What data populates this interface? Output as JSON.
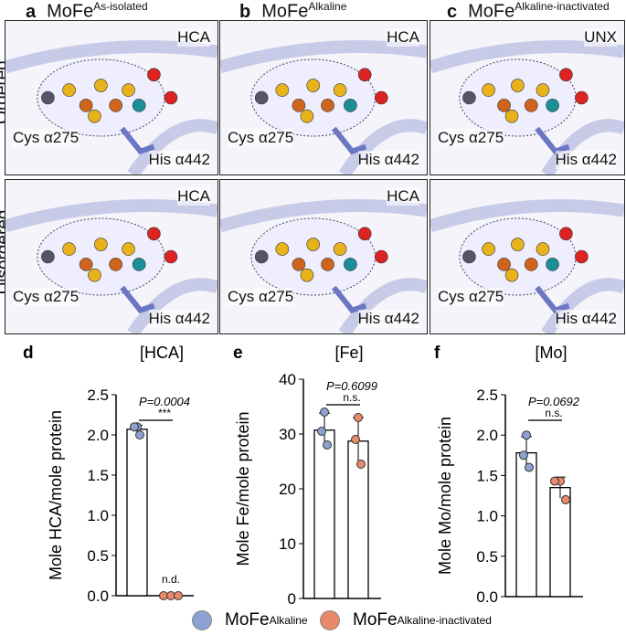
{
  "columns": [
    {
      "letter": "a",
      "title": "MoFe",
      "sup": "As-isolated",
      "labels": {
        "ordered": [
          "HCA",
          "Cys α275",
          "His α442"
        ],
        "disordered": [
          "HCA",
          "Cys α275",
          "His α442"
        ]
      }
    },
    {
      "letter": "b",
      "title": "MoFe",
      "sup": "Alkaline",
      "labels": {
        "ordered": [
          "HCA",
          "Cys α275",
          "His α442"
        ],
        "disordered": [
          "HCA",
          "Cys α275",
          "His α442"
        ]
      }
    },
    {
      "letter": "c",
      "title": "MoFe",
      "sup": "Alkaline-inactivated",
      "labels": {
        "ordered": [
          "UNX",
          "Cys α275",
          "His α442"
        ],
        "disordered": [
          "",
          "Cys α275",
          "His α442"
        ]
      }
    }
  ],
  "rows": [
    "Ordered",
    "Disordered"
  ],
  "legend": [
    {
      "label": "MoFe",
      "sup": "Alkaline",
      "color": "#8da1d3"
    },
    {
      "label": "MoFe",
      "sup": "Alkaline-inactivated",
      "color": "#e8896a"
    }
  ],
  "chart_data": [
    {
      "type": "bar",
      "panel": "d",
      "title": "[HCA]",
      "ylabel": "Mole HCA/mole protein",
      "ylim": [
        0,
        2.5
      ],
      "yticks": [
        "0.0",
        "0.5",
        "1.0",
        "1.5",
        "2.0",
        "2.5"
      ],
      "categories": [
        "MoFe Alkaline",
        "MoFe Alkaline-inactivated"
      ],
      "values": [
        2.07,
        0
      ],
      "points": [
        [
          2.1,
          2.1,
          2.0
        ],
        [
          0,
          0,
          0
        ]
      ],
      "errors": [
        0.05,
        0
      ],
      "pvalue": "P=0.0004",
      "sig": "***",
      "annot": [
        "",
        "n.d."
      ]
    },
    {
      "type": "bar",
      "panel": "e",
      "title": "[Fe]",
      "ylabel": "Mole Fe/mole protein",
      "ylim": [
        0,
        40
      ],
      "yticks": [
        "0",
        "10",
        "20",
        "30",
        "40"
      ],
      "categories": [
        "MoFe Alkaline",
        "MoFe Alkaline-inactivated"
      ],
      "values": [
        30.7,
        28.7
      ],
      "points": [
        [
          34,
          30.5,
          28
        ],
        [
          33,
          29,
          24.5
        ]
      ],
      "errors": [
        3.1,
        4.3
      ],
      "pvalue": "P=0.6099",
      "sig": "n.s.",
      "annot": [
        "",
        ""
      ]
    },
    {
      "type": "bar",
      "panel": "f",
      "title": "[Mo]",
      "ylabel": "Mole Mo/mole protein",
      "ylim": [
        0,
        2.5
      ],
      "yticks": [
        "0.0",
        "0.5",
        "1.0",
        "1.5",
        "2.0",
        "2.5"
      ],
      "categories": [
        "MoFe Alkaline",
        "MoFe Alkaline-inactivated"
      ],
      "values": [
        1.78,
        1.35
      ],
      "points": [
        [
          2.0,
          1.75,
          1.6
        ],
        [
          1.43,
          1.43,
          1.2
        ]
      ],
      "errors": [
        0.2,
        0.13
      ],
      "pvalue": "P=0.0692",
      "sig": "n.s.",
      "annot": [
        "",
        ""
      ]
    }
  ]
}
